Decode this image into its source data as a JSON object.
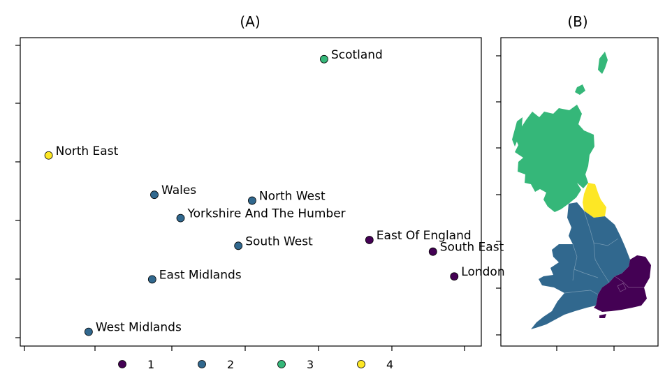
{
  "panels": {
    "a_title": "(A)",
    "b_title": "(B)"
  },
  "cluster_colors": {
    "1": "#440154",
    "2": "#31688e",
    "3": "#35b779",
    "4": "#fde725"
  },
  "chart_data": {
    "type": "scatter",
    "title": "(A)",
    "xlabel": "",
    "ylabel": "",
    "grid": false,
    "legend_placement": "bottom",
    "xlim": [
      0,
      1
    ],
    "ylim": [
      0,
      1
    ],
    "points": [
      {
        "label": "Scotland",
        "x": 0.665,
        "y": 0.955,
        "cluster": 3
      },
      {
        "label": "North East",
        "x": 0.045,
        "y": 0.625,
        "cluster": 4
      },
      {
        "label": "Wales",
        "x": 0.283,
        "y": 0.49,
        "cluster": 2
      },
      {
        "label": "North West",
        "x": 0.503,
        "y": 0.47,
        "cluster": 2
      },
      {
        "label": "Yorkshire And The Humber",
        "x": 0.342,
        "y": 0.41,
        "cluster": 2
      },
      {
        "label": "East Of England",
        "x": 0.767,
        "y": 0.335,
        "cluster": 1
      },
      {
        "label": "South West",
        "x": 0.472,
        "y": 0.315,
        "cluster": 2
      },
      {
        "label": "South East",
        "x": 0.91,
        "y": 0.295,
        "cluster": 1
      },
      {
        "label": "East Midlands",
        "x": 0.278,
        "y": 0.2,
        "cluster": 2
      },
      {
        "label": "London",
        "x": 0.958,
        "y": 0.21,
        "cluster": 1
      },
      {
        "label": "West Midlands",
        "x": 0.135,
        "y": 0.02,
        "cluster": 2
      }
    ],
    "legend": [
      {
        "label": "1",
        "cluster": 1
      },
      {
        "label": "2",
        "cluster": 2
      },
      {
        "label": "3",
        "cluster": 3
      },
      {
        "label": "4",
        "cluster": 4
      }
    ]
  },
  "map": {
    "title": "(B)",
    "regions": [
      {
        "name": "scotland",
        "cluster": 3
      },
      {
        "name": "north-east",
        "cluster": 4
      },
      {
        "name": "north-west",
        "cluster": 2
      },
      {
        "name": "yorkshire",
        "cluster": 2
      },
      {
        "name": "wales",
        "cluster": 2
      },
      {
        "name": "midlands",
        "cluster": 2
      },
      {
        "name": "south-west",
        "cluster": 2
      },
      {
        "name": "east-of-england",
        "cluster": 1
      },
      {
        "name": "london",
        "cluster": 1
      },
      {
        "name": "south-east",
        "cluster": 1
      }
    ]
  }
}
